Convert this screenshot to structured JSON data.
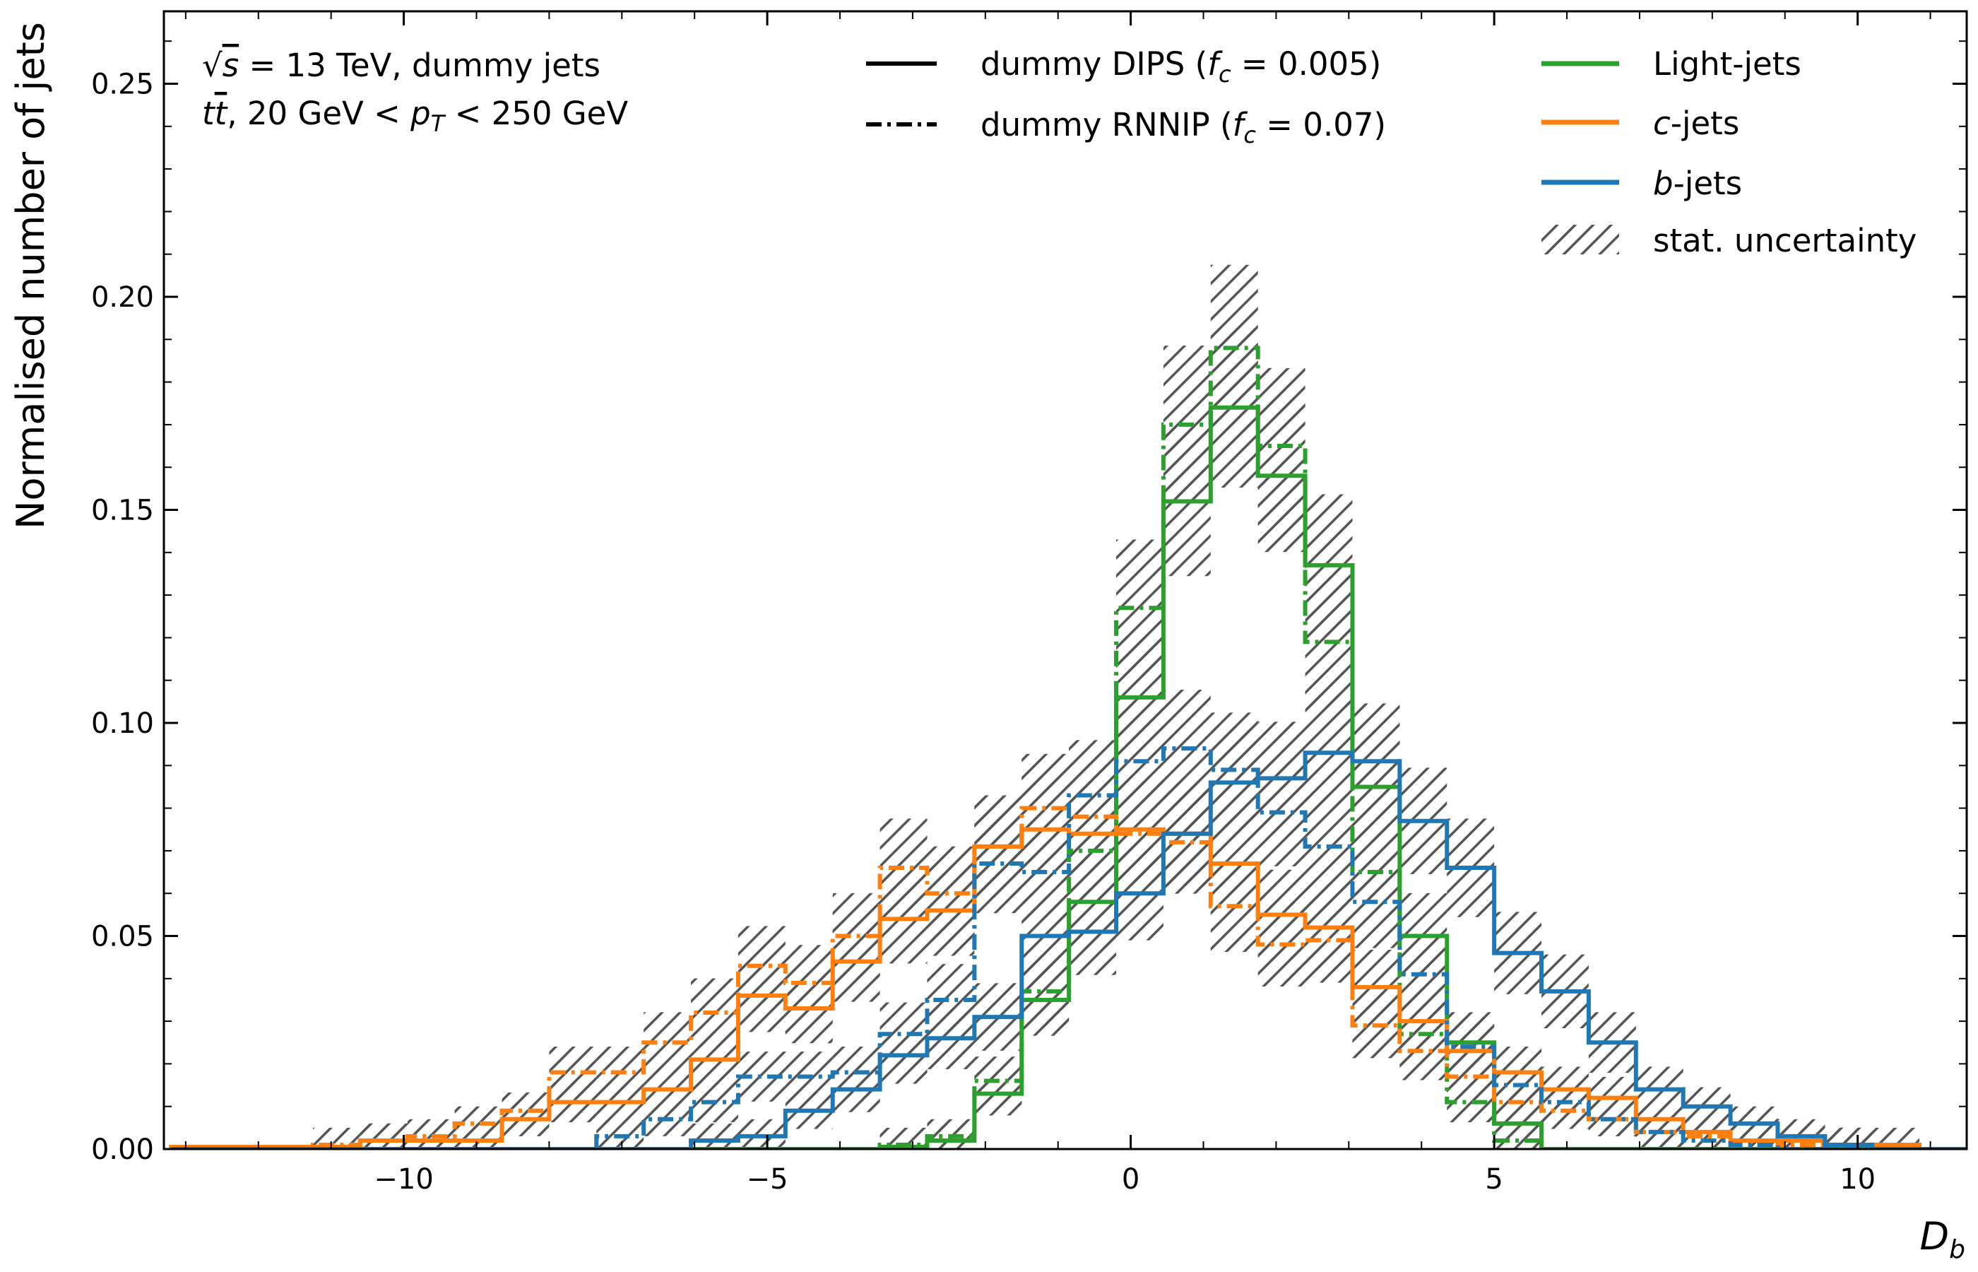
{
  "chart_data": {
    "type": "step histogram",
    "title": "",
    "xlabel": "D_b",
    "ylabel": "Normalised number of jets",
    "xlim": [
      -13.3,
      11.5
    ],
    "ylim": [
      0.0,
      0.267
    ],
    "x_ticks": [
      -10,
      -5,
      0,
      5,
      10
    ],
    "x_tick_labels": [
      "−10",
      "−5",
      "0",
      "5",
      "10"
    ],
    "y_ticks": [
      0.0,
      0.05,
      0.1,
      0.15,
      0.2,
      0.25
    ],
    "y_tick_labels": [
      "0.00",
      "0.05",
      "0.10",
      "0.15",
      "0.20",
      "0.25"
    ],
    "bin_edges": [
      -13.2,
      -12.55,
      -11.9,
      -11.25,
      -10.6,
      -9.95,
      -9.3,
      -8.65,
      -8.0,
      -7.35,
      -6.7,
      -6.05,
      -5.4,
      -4.75,
      -4.1,
      -3.45,
      -2.8,
      -2.15,
      -1.5,
      -0.85,
      -0.2,
      0.45,
      1.1,
      1.75,
      2.4,
      3.05,
      3.7,
      4.35,
      5.0,
      5.65,
      6.3,
      6.95,
      7.6,
      8.25,
      8.9,
      9.55,
      10.2,
      10.85,
      11.5
    ],
    "annotations": [
      {
        "name": "energy",
        "text": "√s = 13 TeV, dummy jets"
      },
      {
        "name": "selection",
        "text": "t t̄, 20 GeV < pT < 250 GeV"
      }
    ],
    "legend": {
      "placement": "top",
      "line_styles": [
        {
          "label": "dummy DIPS (fc = 0.005)",
          "style": "solid"
        },
        {
          "label": "dummy RNNIP (fc = 0.07)",
          "style": "dashdot"
        }
      ],
      "flavours": [
        {
          "label": "Light-jets",
          "color": "#2ca02c"
        },
        {
          "label": "c-jets",
          "color": "#ff7f0e"
        },
        {
          "label": "b-jets",
          "color": "#1f77b4"
        },
        {
          "label": "stat. uncertainty",
          "color": "#555555",
          "pattern": "hatch"
        }
      ]
    },
    "series": [
      {
        "flavour": "Light-jets",
        "tagger": "dummy DIPS",
        "color": "#2ca02c",
        "style": "solid",
        "values": [
          0,
          0,
          0,
          0,
          0,
          0,
          0,
          0,
          0,
          0,
          0,
          0,
          0,
          0,
          0,
          0.0005,
          0.002,
          0.013,
          0.035,
          0.058,
          0.106,
          0.152,
          0.174,
          0.158,
          0.137,
          0.085,
          0.05,
          0.025,
          0.006,
          0,
          0,
          0,
          0,
          0,
          0,
          0,
          0,
          0
        ]
      },
      {
        "flavour": "Light-jets",
        "tagger": "dummy RNNIP",
        "color": "#2ca02c",
        "style": "dashdot",
        "values": [
          0,
          0,
          0,
          0,
          0,
          0,
          0,
          0,
          0,
          0,
          0,
          0,
          0,
          0,
          0,
          0.001,
          0.003,
          0.016,
          0.037,
          0.07,
          0.127,
          0.17,
          0.188,
          0.165,
          0.119,
          0.065,
          0.027,
          0.011,
          0.002,
          0,
          0,
          0,
          0,
          0,
          0,
          0,
          0,
          0
        ]
      },
      {
        "flavour": "c-jets",
        "tagger": "dummy DIPS",
        "color": "#ff7f0e",
        "style": "solid",
        "values": [
          0.0005,
          0.0005,
          0.0005,
          0.0005,
          0.002,
          0.002,
          0.002,
          0.007,
          0.011,
          0.011,
          0.014,
          0.021,
          0.036,
          0.033,
          0.044,
          0.054,
          0.056,
          0.071,
          0.075,
          0.074,
          0.075,
          0.074,
          0.067,
          0.055,
          0.052,
          0.038,
          0.03,
          0.023,
          0.018,
          0.014,
          0.012,
          0.007,
          0.004,
          0.002,
          0.002,
          0.001,
          0.001,
          0
        ]
      },
      {
        "flavour": "c-jets",
        "tagger": "dummy RNNIP",
        "color": "#ff7f0e",
        "style": "dashdot",
        "values": [
          0.0005,
          0.0005,
          0.0005,
          0.001,
          0.002,
          0.003,
          0.006,
          0.009,
          0.018,
          0.018,
          0.025,
          0.032,
          0.043,
          0.039,
          0.05,
          0.066,
          0.06,
          0.071,
          0.08,
          0.078,
          0.074,
          0.072,
          0.057,
          0.048,
          0.049,
          0.029,
          0.023,
          0.017,
          0.011,
          0.009,
          0.007,
          0.004,
          0.003,
          0.002,
          0.001,
          0.001,
          0,
          0
        ]
      },
      {
        "flavour": "b-jets",
        "tagger": "dummy DIPS",
        "color": "#1f77b4",
        "style": "solid",
        "values": [
          0,
          0,
          0,
          0,
          0,
          0,
          0,
          0,
          0,
          0,
          0,
          0.002,
          0.003,
          0.009,
          0.014,
          0.022,
          0.026,
          0.031,
          0.05,
          0.051,
          0.06,
          0.074,
          0.086,
          0.087,
          0.093,
          0.091,
          0.077,
          0.066,
          0.046,
          0.037,
          0.025,
          0.014,
          0.01,
          0.006,
          0.003,
          0.001,
          0,
          0
        ]
      },
      {
        "flavour": "b-jets",
        "tagger": "dummy RNNIP",
        "color": "#1f77b4",
        "style": "dashdot",
        "values": [
          0,
          0,
          0,
          0,
          0,
          0,
          0,
          0,
          0,
          0.003,
          0.007,
          0.011,
          0.017,
          0.017,
          0.018,
          0.027,
          0.035,
          0.067,
          0.065,
          0.083,
          0.091,
          0.094,
          0.089,
          0.079,
          0.071,
          0.058,
          0.041,
          0.024,
          0.015,
          0.011,
          0.007,
          0.004,
          0.002,
          0.001,
          0,
          0,
          0,
          0
        ]
      }
    ]
  }
}
